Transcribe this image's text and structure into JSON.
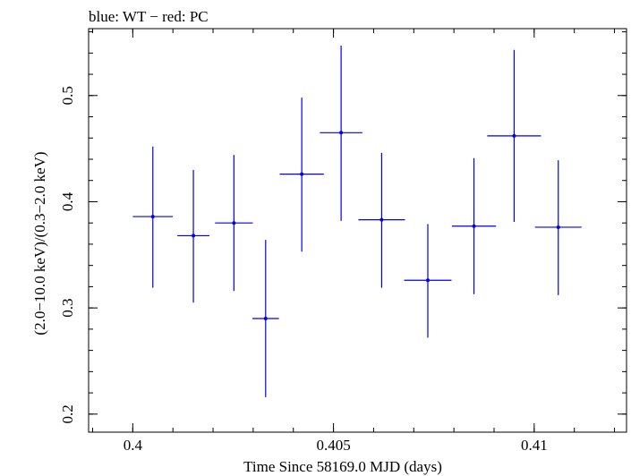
{
  "chart_data": {
    "type": "scatter",
    "title": "blue: WT − red: PC",
    "xlabel": "Time Since 58169.0 MJD (days)",
    "ylabel": "(2.0−10.0 keV)/(0.3−2.0 keV)",
    "xlim": [
      0.3989,
      0.4123
    ],
    "ylim": [
      0.183,
      0.563
    ],
    "x_ticks": [
      {
        "value": 0.4,
        "label": "0.4"
      },
      {
        "value": 0.405,
        "label": "0.405"
      },
      {
        "value": 0.41,
        "label": "0.41"
      }
    ],
    "y_ticks": [
      {
        "value": 0.2,
        "label": "0.2"
      },
      {
        "value": 0.3,
        "label": "0.3"
      },
      {
        "value": 0.4,
        "label": "0.4"
      },
      {
        "value": 0.5,
        "label": "0.5"
      }
    ],
    "series": [
      {
        "name": "WT",
        "color": "#0000ee",
        "points": [
          {
            "x": 0.4005,
            "xerr": 0.0005,
            "y": 0.386,
            "ylo": 0.319,
            "yhi": 0.452
          },
          {
            "x": 0.40151,
            "xerr": 0.0004,
            "y": 0.368,
            "ylo": 0.305,
            "yhi": 0.43
          },
          {
            "x": 0.40252,
            "xerr": 0.00047,
            "y": 0.38,
            "ylo": 0.316,
            "yhi": 0.444
          },
          {
            "x": 0.40331,
            "xerr": 0.00033,
            "y": 0.29,
            "ylo": 0.216,
            "yhi": 0.364
          },
          {
            "x": 0.40421,
            "xerr": 0.00055,
            "y": 0.426,
            "ylo": 0.353,
            "yhi": 0.498
          },
          {
            "x": 0.40519,
            "xerr": 0.00053,
            "y": 0.465,
            "ylo": 0.382,
            "yhi": 0.547
          },
          {
            "x": 0.4062,
            "xerr": 0.00058,
            "y": 0.383,
            "ylo": 0.319,
            "yhi": 0.446
          },
          {
            "x": 0.40735,
            "xerr": 0.00059,
            "y": 0.326,
            "ylo": 0.272,
            "yhi": 0.379
          },
          {
            "x": 0.4085,
            "xerr": 0.00055,
            "y": 0.377,
            "ylo": 0.313,
            "yhi": 0.441
          },
          {
            "x": 0.4095,
            "xerr": 0.00067,
            "y": 0.462,
            "ylo": 0.381,
            "yhi": 0.543
          },
          {
            "x": 0.4106,
            "xerr": 0.00058,
            "y": 0.376,
            "ylo": 0.312,
            "yhi": 0.439
          }
        ]
      }
    ]
  }
}
